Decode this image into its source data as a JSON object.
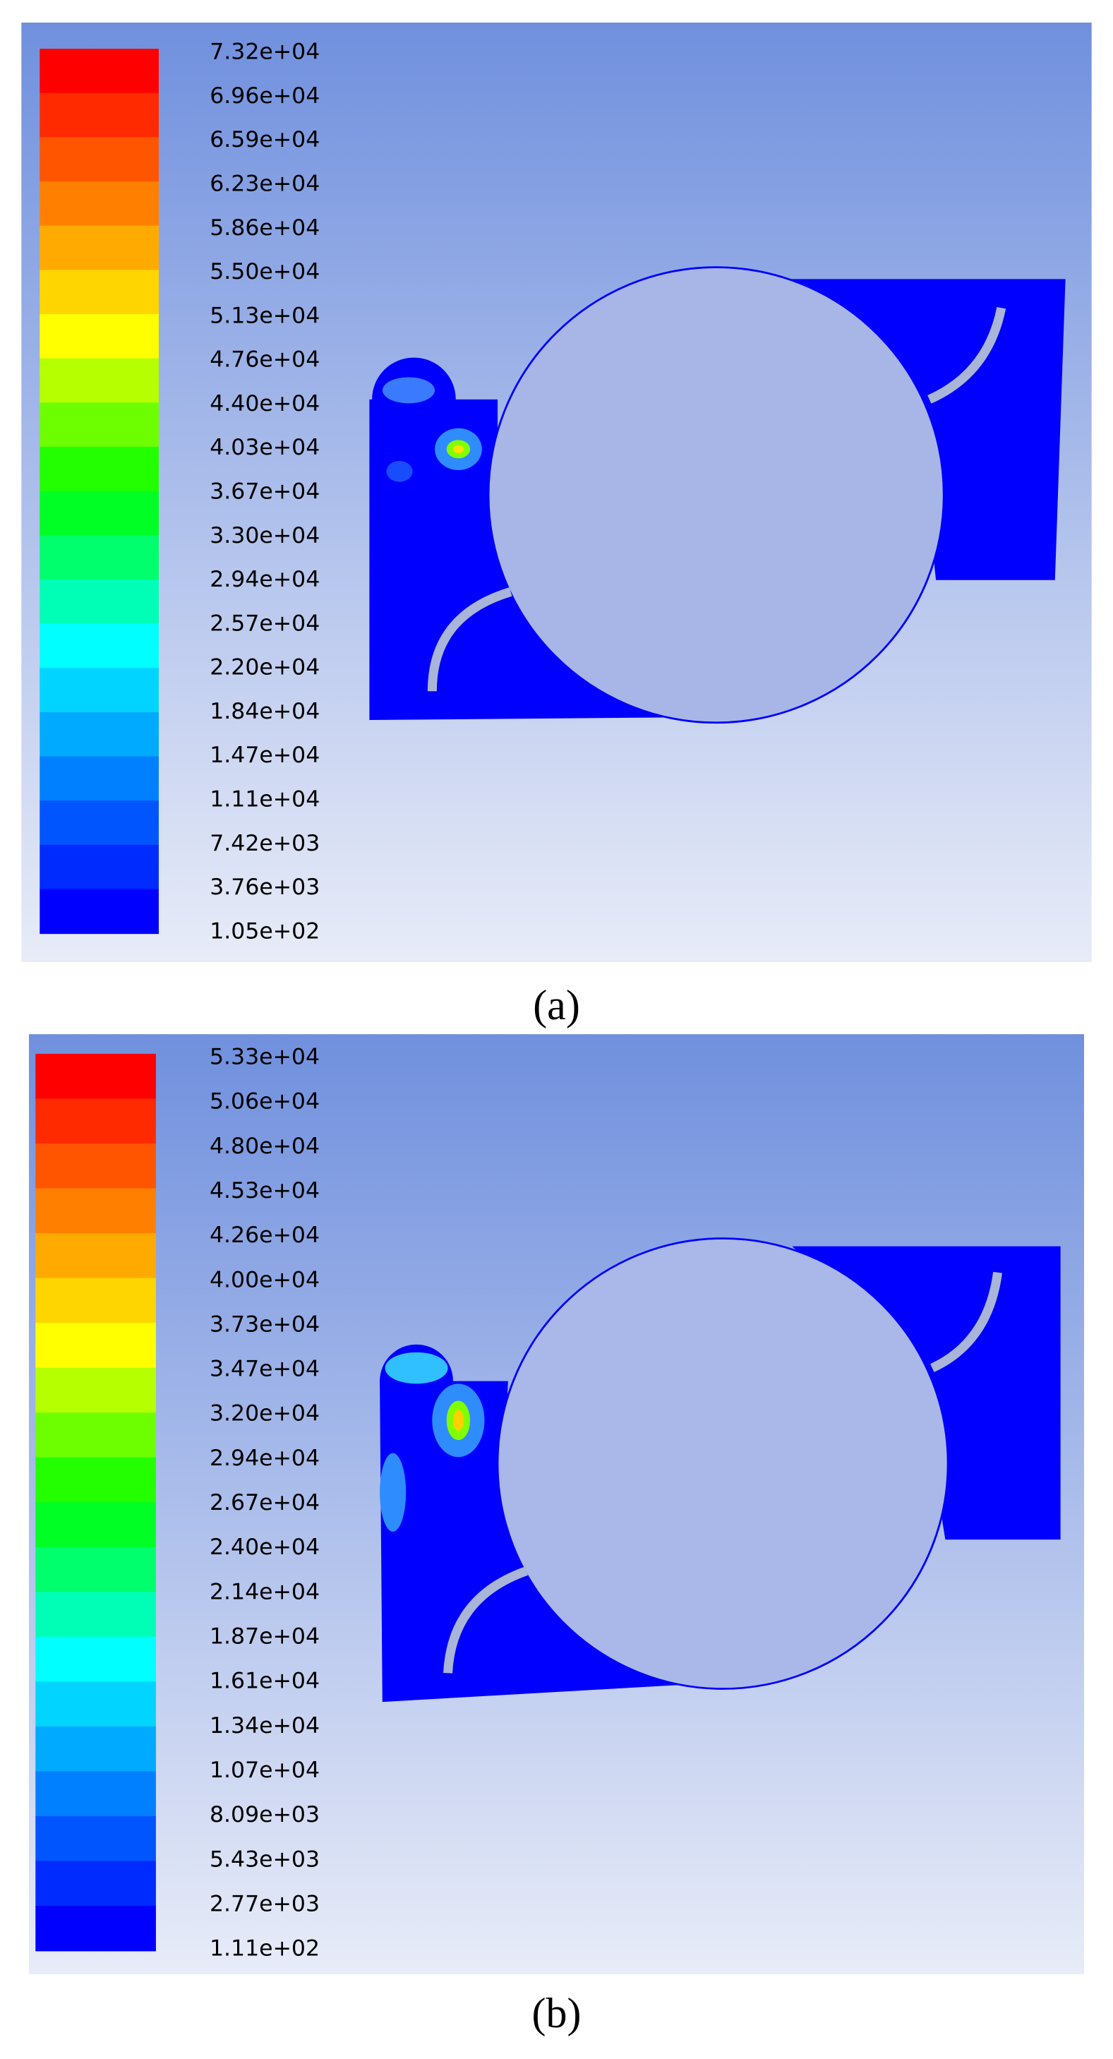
{
  "panels": [
    {
      "label": "(a)",
      "colorbar": [
        "7.32e+04",
        "6.96e+04",
        "6.59e+04",
        "6.23e+04",
        "5.86e+04",
        "5.50e+04",
        "5.13e+04",
        "4.76e+04",
        "4.40e+04",
        "4.03e+04",
        "3.67e+04",
        "3.30e+04",
        "2.94e+04",
        "2.57e+04",
        "2.20e+04",
        "1.84e+04",
        "1.47e+04",
        "1.11e+04",
        "7.42e+03",
        "3.76e+03",
        "1.05e+02"
      ]
    },
    {
      "label": "(b)",
      "colorbar": [
        "5.33e+04",
        "5.06e+04",
        "4.80e+04",
        "4.53e+04",
        "4.26e+04",
        "4.00e+04",
        "3.73e+04",
        "3.47e+04",
        "3.20e+04",
        "2.94e+04",
        "2.67e+04",
        "2.40e+04",
        "2.14e+04",
        "1.87e+04",
        "1.61e+04",
        "1.34e+04",
        "1.07e+04",
        "8.09e+03",
        "5.43e+03",
        "2.77e+03",
        "1.11e+02"
      ]
    }
  ]
}
